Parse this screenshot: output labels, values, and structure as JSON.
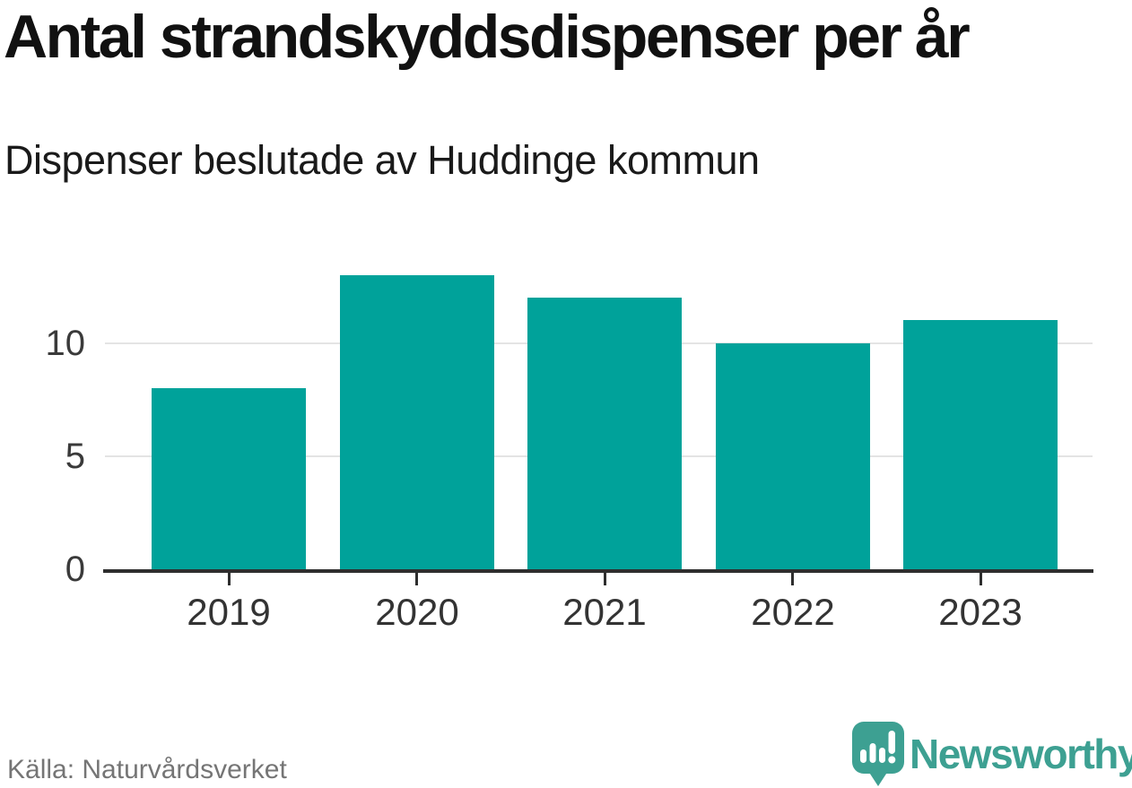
{
  "header": {
    "title": "Antal strandskyddsdispenser per år",
    "subtitle": "Dispenser beslutade av Huddinge kommun"
  },
  "chart_data": {
    "type": "bar",
    "categories": [
      "2019",
      "2020",
      "2021",
      "2022",
      "2023"
    ],
    "values": [
      8,
      13,
      12,
      10,
      11
    ],
    "title": "Antal strandskyddsdispenser per år",
    "subtitle": "Dispenser beslutade av Huddinge kommun",
    "xlabel": "",
    "ylabel": "",
    "yticks": [
      0,
      5,
      10
    ],
    "ylim": [
      0,
      14.5
    ],
    "grid": true,
    "legend": false,
    "bar_color": "#00a29a",
    "gridline_color": "#e4e4e4",
    "axis_color": "#2e2e2e",
    "tick_label_color": "#3a3a3a"
  },
  "footer": {
    "source": "Källa: Naturvårdsverket",
    "brand": "Newsworthy",
    "brand_color": "#3da092",
    "brand_icon": "newsworthy-bubble-chart-icon"
  }
}
